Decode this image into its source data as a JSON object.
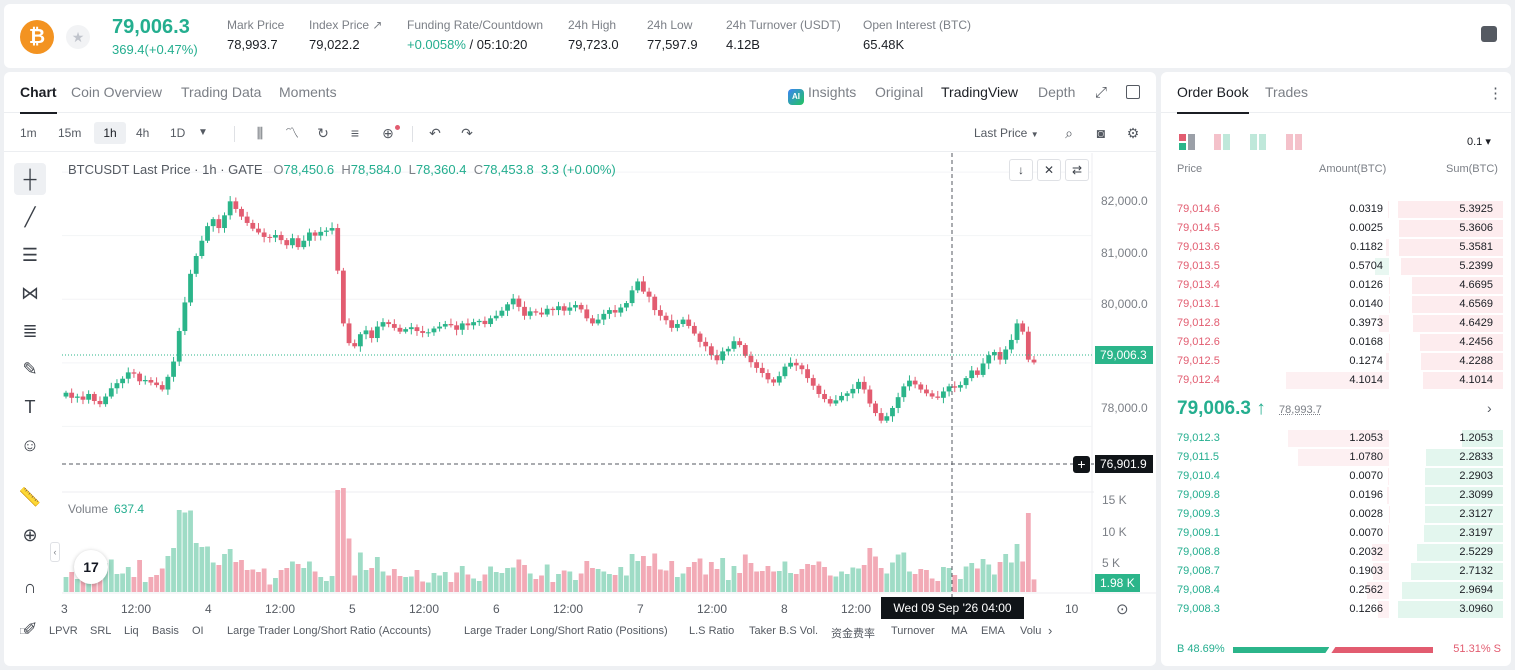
{
  "header": {
    "coin_glyph": "₿",
    "last_price": "79,006.3",
    "change": "369.4(+0.47%)",
    "stats": [
      {
        "label": "Mark Price",
        "value": "78,993.7"
      },
      {
        "label": "Index Price ↗",
        "value": "79,022.2"
      },
      {
        "label": "Funding Rate/Countdown",
        "value_up": "+0.0058%",
        "value": " / 05:10:20"
      },
      {
        "label": "24h High",
        "value": "79,723.0"
      },
      {
        "label": "24h Low",
        "value": "77,597.9"
      },
      {
        "label": "24h Turnover (USDT)",
        "value": "4.12B"
      },
      {
        "label": "Open Interest (BTC)",
        "value": "65.48K"
      }
    ]
  },
  "chart_tabs": {
    "left": [
      "Chart",
      "Coin Overview",
      "Trading Data",
      "Moments"
    ],
    "insights": "Insights",
    "ai_badge": "AI",
    "right": [
      "Original",
      "TradingView",
      "Depth"
    ]
  },
  "toolbar": {
    "timeframes": [
      "1m",
      "15m",
      "1h",
      "4h",
      "1D"
    ],
    "active_timeframe": "1h",
    "price_type": "Last Price"
  },
  "legend": {
    "symbol": "BTCUSDT Last Price · 1h · GATE",
    "o_label": "O",
    "o": "78,450.6",
    "h_label": "H",
    "h": "78,584.0",
    "l_label": "L",
    "l": "78,360.4",
    "c_label": "C",
    "c": "78,453.8",
    "chg": "3.3 (+0.00%)"
  },
  "volume": {
    "label": "Volume",
    "value": "637.4"
  },
  "chart_data": {
    "type": "candlestick",
    "price_axis": [
      "82,000.0",
      "81,000.0",
      "80,000.0",
      "79,000.0",
      "78,000.0"
    ],
    "ylim": [
      77000,
      82300
    ],
    "volume_axis": [
      "15 K",
      "10 K",
      "5 K"
    ],
    "x_ticks": [
      "3",
      "12:00",
      "4",
      "12:00",
      "5",
      "12:00",
      "6",
      "12:00",
      "7",
      "12:00",
      "8",
      "12:00",
      "10"
    ],
    "last_price_tag": "79,006.3",
    "crosshair_price": "76,901.9",
    "crosshair_date": "Wed 09 Sep '26   04:00",
    "volume_tag": "1.98 K",
    "up_color": "#2bb58a",
    "down_color": "#e25c70",
    "candles_close": [
      78530,
      78450,
      78470,
      78420,
      78510,
      78400,
      78350,
      78470,
      78600,
      78680,
      78750,
      78850,
      78830,
      78710,
      78730,
      78690,
      78650,
      78580,
      78780,
      79020,
      79500,
      79950,
      80400,
      80680,
      80920,
      81150,
      81260,
      81120,
      81320,
      81540,
      81420,
      81300,
      81200,
      81110,
      81050,
      80980,
      80970,
      81010,
      80930,
      80850,
      80960,
      80820,
      80920,
      81050,
      81000,
      81060,
      81080,
      81120,
      80450,
      79620,
      79310,
      79260,
      79450,
      79510,
      79390,
      79570,
      79640,
      79610,
      79550,
      79490,
      79530,
      79560,
      79500,
      79470,
      79480,
      79540,
      79570,
      79610,
      79590,
      79520,
      79620,
      79590,
      79640,
      79660,
      79610,
      79700,
      79740,
      79820,
      79920,
      80010,
      79880,
      79740,
      79810,
      79790,
      79760,
      79850,
      79830,
      79890,
      79820,
      79870,
      79910,
      79840,
      79700,
      79620,
      79680,
      79770,
      79830,
      79790,
      79870,
      79940,
      80140,
      80280,
      80120,
      80040,
      79830,
      79740,
      79670,
      79550,
      79610,
      79680,
      79580,
      79460,
      79330,
      79260,
      79120,
      79040,
      79180,
      79220,
      79340,
      79280,
      79110,
      79010,
      78920,
      78840,
      78740,
      78690,
      78790,
      78940,
      79000,
      78960,
      78900,
      78760,
      78640,
      78510,
      78430,
      78360,
      78410,
      78480,
      78520,
      78590,
      78700,
      78580,
      78360,
      78210,
      78090,
      78160,
      78290,
      78460,
      78630,
      78720,
      78660,
      78580,
      78520,
      78470,
      78450,
      78550,
      78630,
      78610,
      78650,
      78760,
      78880,
      78810,
      78990,
      79120,
      79170,
      79050,
      79210,
      79360,
      79620,
      79490,
      79050,
      79006
    ]
  },
  "drawing_tools": [
    "crosshair-icon",
    "trend-line-icon",
    "horizontal-lines-icon",
    "pattern-icon",
    "fib-icon",
    "brush-icon",
    "text-icon",
    "emoji-icon",
    "ruler-icon",
    "zoom-icon",
    "magnet-icon",
    "pencil-icon"
  ],
  "indicators": [
    "LPVR",
    "SRL",
    "Liq",
    "Basis",
    "OI",
    "Large Trader Long/Short Ratio (Accounts)",
    "Large Trader Long/Short Ratio (Positions)",
    "L.S Ratio",
    "Taker B.S Vol.",
    "资金费率",
    "Turnover",
    "MA",
    "EMA",
    "Volu"
  ],
  "order_book": {
    "tabs": [
      "Order Book",
      "Trades"
    ],
    "precision": "0.1 ▾",
    "headers": {
      "price": "Price",
      "amount": "Amount(BTC)",
      "sum": "Sum(BTC)"
    },
    "asks": [
      {
        "price": "79,014.6",
        "amount": "0.0319",
        "sum": "5.3925"
      },
      {
        "price": "79,014.5",
        "amount": "0.0025",
        "sum": "5.3606"
      },
      {
        "price": "79,013.6",
        "amount": "0.1182",
        "sum": "5.3581"
      },
      {
        "price": "79,013.5",
        "amount": "0.5704",
        "sum": "5.2399"
      },
      {
        "price": "79,013.4",
        "amount": "0.0126",
        "sum": "4.6695"
      },
      {
        "price": "79,013.1",
        "amount": "0.0140",
        "sum": "4.6569"
      },
      {
        "price": "79,012.8",
        "amount": "0.3973",
        "sum": "4.6429"
      },
      {
        "price": "79,012.6",
        "amount": "0.0168",
        "sum": "4.2456"
      },
      {
        "price": "79,012.5",
        "amount": "0.1274",
        "sum": "4.2288"
      },
      {
        "price": "79,012.4",
        "amount": "4.1014",
        "sum": "4.1014"
      }
    ],
    "mid_price": "79,006.3 ↑",
    "mid_mark": "78,993.7",
    "bids": [
      {
        "price": "79,012.3",
        "amount": "1.2053",
        "sum": "1.2053"
      },
      {
        "price": "79,011.5",
        "amount": "1.0780",
        "sum": "2.2833"
      },
      {
        "price": "79,010.4",
        "amount": "0.0070",
        "sum": "2.2903"
      },
      {
        "price": "79,009.8",
        "amount": "0.0196",
        "sum": "2.3099"
      },
      {
        "price": "79,009.3",
        "amount": "0.0028",
        "sum": "2.3127"
      },
      {
        "price": "79,009.1",
        "amount": "0.0070",
        "sum": "2.3197"
      },
      {
        "price": "79,008.8",
        "amount": "0.2032",
        "sum": "2.5229"
      },
      {
        "price": "79,008.7",
        "amount": "0.1903",
        "sum": "2.7132"
      },
      {
        "price": "79,008.4",
        "amount": "0.2562",
        "sum": "2.9694"
      },
      {
        "price": "79,008.3",
        "amount": "0.1266",
        "sum": "3.0960"
      }
    ],
    "buy_ratio": "B 48.69%",
    "sell_ratio": "51.31% S",
    "buy_pct": 48.69
  }
}
